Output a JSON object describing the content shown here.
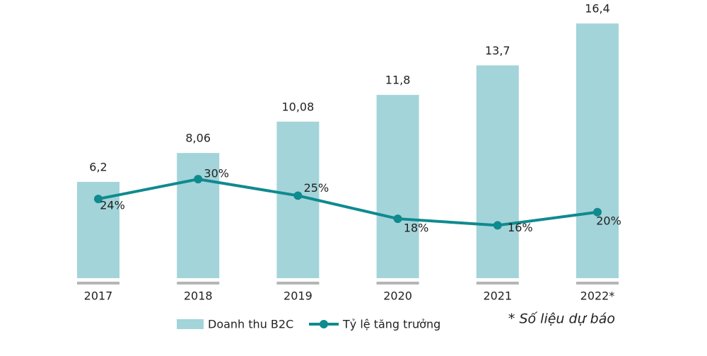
{
  "chart_data": {
    "type": "bar",
    "categories": [
      "2017",
      "2018",
      "2019",
      "2020",
      "2021",
      "2022*"
    ],
    "series": [
      {
        "name": "Doanh thu B2C",
        "type": "bar",
        "color": "#a3d4d9",
        "values": [
          6.2,
          8.06,
          10.08,
          11.8,
          13.7,
          16.4
        ],
        "value_labels": [
          "6,2",
          "8,06",
          "10,08",
          "11,8",
          "13,7",
          "16,4"
        ]
      },
      {
        "name": "Tỷ lệ tăng trưởng",
        "type": "line",
        "axis": "y2",
        "color": "#0f8a8f",
        "values": [
          24,
          30,
          25,
          18,
          16,
          20
        ],
        "value_labels": [
          "24%",
          "30%",
          "25%",
          "18%",
          "16%",
          "20%"
        ]
      }
    ],
    "ylim": [
      0,
      17
    ],
    "y2lim": [
      0,
      80
    ],
    "note": "* Số liệu dự báo",
    "legend": "bottom"
  }
}
